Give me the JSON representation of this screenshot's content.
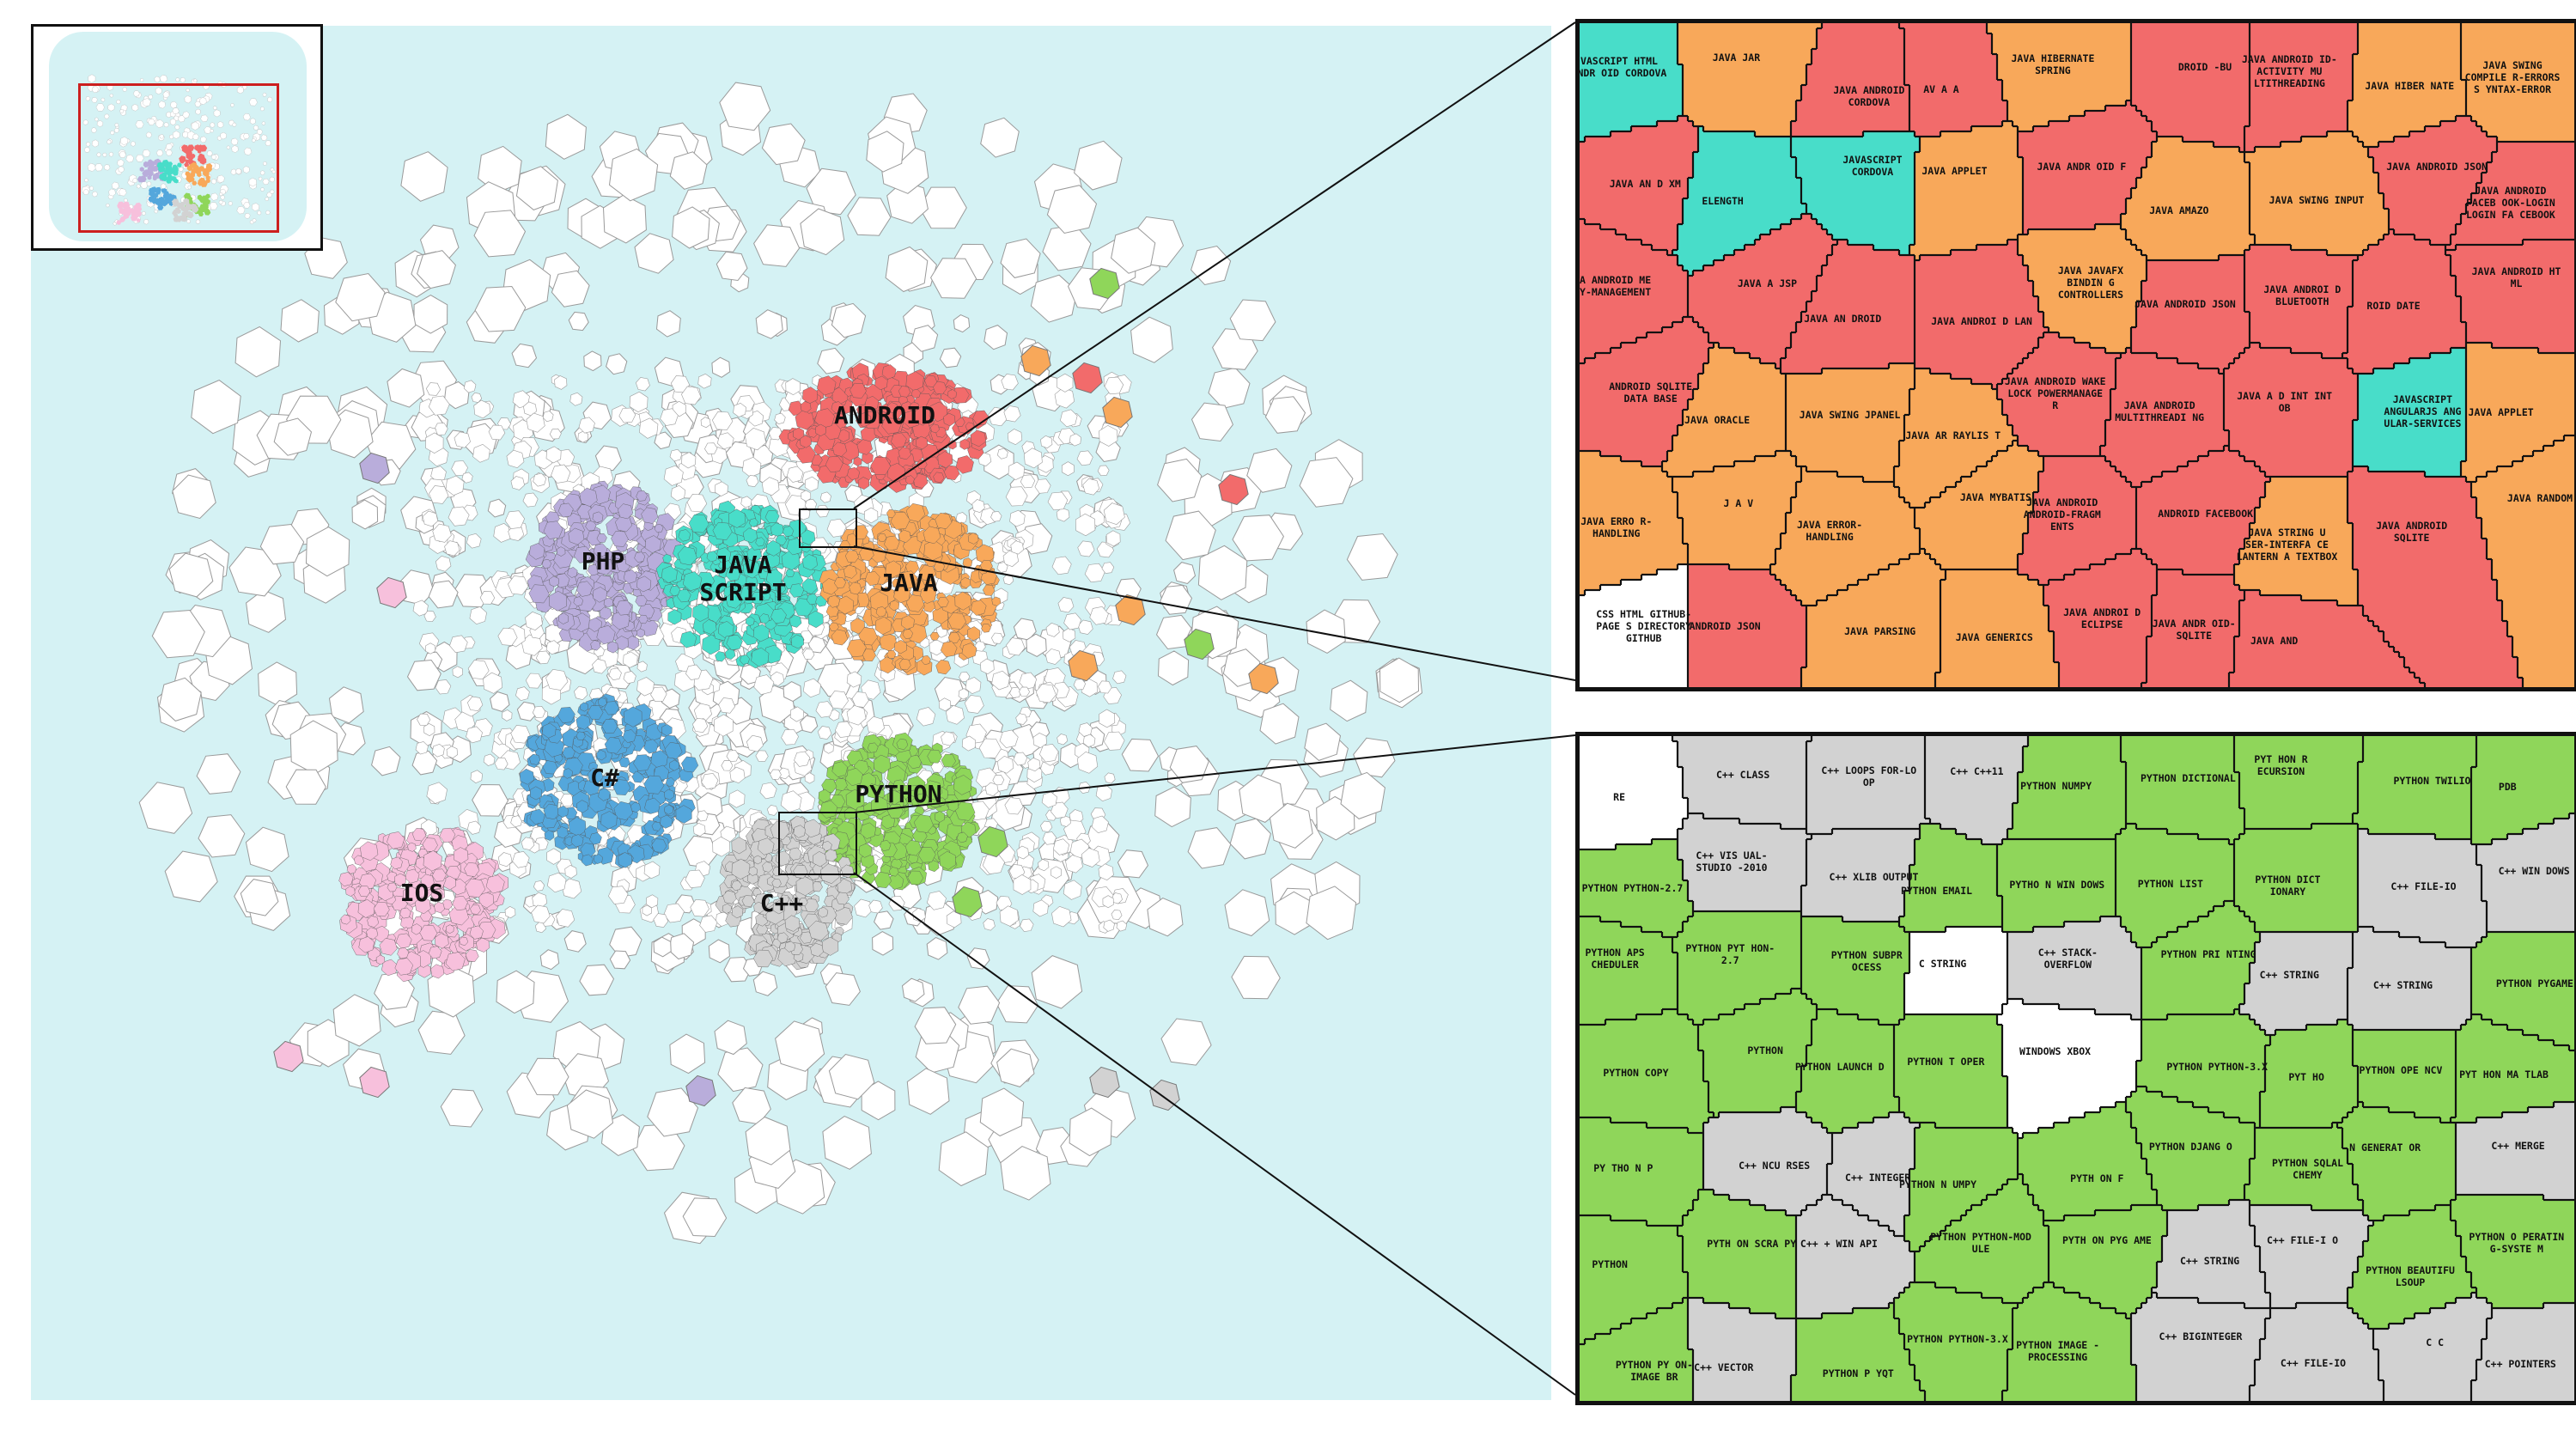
{
  "palette": {
    "ocean": "#d5f2f4",
    "tile": "#ffffff",
    "tile_border": "#9a9a9a",
    "android": "#f26b6b",
    "java": "#f8a85a",
    "javascript": "#48ddc9",
    "php": "#b9addb",
    "csharp": "#54a7dc",
    "python": "#8fd65a",
    "cpp": "#d2d2d2",
    "ios": "#f7c0dc",
    "viewport": "#cc1f1f"
  },
  "clusters": [
    {
      "id": "android",
      "label": "ANDROID",
      "color": "android"
    },
    {
      "id": "php",
      "label": "PHP",
      "color": "php"
    },
    {
      "id": "javascript",
      "label": "JAVA\nSCRIPT",
      "color": "javascript"
    },
    {
      "id": "java",
      "label": "JAVA",
      "color": "java"
    },
    {
      "id": "csharp",
      "label": "C#",
      "color": "csharp"
    },
    {
      "id": "python",
      "label": "PYTHON",
      "color": "python"
    },
    {
      "id": "ios",
      "label": "IOS",
      "color": "ios"
    },
    {
      "id": "cpp",
      "label": "C++",
      "color": "cpp"
    }
  ],
  "zoom_top": {
    "cells": [
      {
        "text": "VASCRIPT HTML ANDR OID CORDOVA",
        "color": "javascript"
      },
      {
        "text": "JAVA JAR",
        "color": "java"
      },
      {
        "text": "JAVA ANDROID CORDOVA",
        "color": "android"
      },
      {
        "text": "AV A A",
        "color": "android"
      },
      {
        "text": "JAVA HIBERNATE SPRING",
        "color": "java"
      },
      {
        "text": "DROID -BU",
        "color": "android"
      },
      {
        "text": "JAVA ANDROID ID-ACTIVITY MU LTITHREADING",
        "color": "android"
      },
      {
        "text": "JAVA HIBER NATE",
        "color": "java"
      },
      {
        "text": "JAVA SWING COMPILE R-ERRORS S YNTAX-ERROR",
        "color": "java"
      },
      {
        "text": "JAVA AN D XM",
        "color": "android"
      },
      {
        "text": "ELENGTH",
        "color": "javascript"
      },
      {
        "text": "JAVASCRIPT CORDOVA",
        "color": "javascript"
      },
      {
        "text": "JAVA APPLET",
        "color": "java"
      },
      {
        "text": "JAVA ANDR OID F",
        "color": "android"
      },
      {
        "text": "JAVA AMAZO",
        "color": "java"
      },
      {
        "text": "JAVA SWING INPUT",
        "color": "java"
      },
      {
        "text": "JAVA ANDROID JSON",
        "color": "android"
      },
      {
        "text": "JAVA ANDROID FACEB OOK-LOGIN LOGIN FA CEBOOK",
        "color": "android"
      },
      {
        "text": "JAVA ANDROID ME MORY-MANAGEMENT",
        "color": "android"
      },
      {
        "text": "JAVA A JSP",
        "color": "android"
      },
      {
        "text": "JAVA AN DROID",
        "color": "android"
      },
      {
        "text": "JAVA ANDROI D LAN",
        "color": "android"
      },
      {
        "text": "JAVA JAVAFX BINDIN G CONTROLLERS",
        "color": "java"
      },
      {
        "text": "JAVA ANDROID JSON",
        "color": "android"
      },
      {
        "text": "JAVA ANDROI D BLUETOOTH",
        "color": "android"
      },
      {
        "text": "ROID DATE",
        "color": "android"
      },
      {
        "text": "JAVA ANDROID HT ML",
        "color": "android"
      },
      {
        "text": "ANDROID SQLITE DATA BASE",
        "color": "android"
      },
      {
        "text": "JAVA ORACLE",
        "color": "java"
      },
      {
        "text": "JAVA SWING JPANEL",
        "color": "java"
      },
      {
        "text": "JAVA AR RAYLIS T",
        "color": "java"
      },
      {
        "text": "JAVA ANDROID WAKE LOCK POWERMANAGE R",
        "color": "android"
      },
      {
        "text": "JAVA ANDROID MULTITHREADI NG",
        "color": "android"
      },
      {
        "text": "JAVA A D INT INT OB",
        "color": "android"
      },
      {
        "text": "JAVASCRIPT ANGULARJS ANG ULAR-SERVICES",
        "color": "javascript"
      },
      {
        "text": "JAVA APPLET",
        "color": "java"
      },
      {
        "text": "JAVA ERRO R-HANDLING",
        "color": "java"
      },
      {
        "text": "J A V",
        "color": "java"
      },
      {
        "text": "JAVA ERROR- HANDLING",
        "color": "java"
      },
      {
        "text": "JAVA MYBATIS",
        "color": "java"
      },
      {
        "text": "JAVA ANDROID ANDROID-FRAGM ENTS",
        "color": "android"
      },
      {
        "text": "ANDROID FACEBOOK",
        "color": "android"
      },
      {
        "text": "JAVA STRING U SER-INTERFA CE LANTERN A TEXTBOX",
        "color": "java"
      },
      {
        "text": "JAVA ANDROID SQLITE",
        "color": "android"
      },
      {
        "text": "JAVA RANDOM",
        "color": "java"
      },
      {
        "text": "CSS HTML GITHUB-PAGE S DIRECTORY GITHUB",
        "color": "tile"
      },
      {
        "text": "ANDROID JSON",
        "color": "android"
      },
      {
        "text": "JAVA PARSING",
        "color": "java"
      },
      {
        "text": "JAVA GENERICS",
        "color": "java"
      },
      {
        "text": "JAVA ANDROI D ECLIPSE",
        "color": "android"
      },
      {
        "text": "JAVA ANDR OID-SQLITE",
        "color": "android"
      },
      {
        "text": "JAVA AND",
        "color": "android"
      }
    ]
  },
  "zoom_bottom": {
    "cells": [
      {
        "text": "RE",
        "color": "tile"
      },
      {
        "text": "C++ CLASS",
        "color": "cpp"
      },
      {
        "text": "C++ LOOPS FOR-LO OP",
        "color": "cpp"
      },
      {
        "text": "C++ C++11",
        "color": "cpp"
      },
      {
        "text": "PYTHON NUMPY",
        "color": "python"
      },
      {
        "text": "PYTHON DICTIONAL",
        "color": "python"
      },
      {
        "text": "PYT HON R ECURSION",
        "color": "python"
      },
      {
        "text": "PYTHON TWILIO",
        "color": "python"
      },
      {
        "text": "PDB",
        "color": "python"
      },
      {
        "text": "PYTHON PYTHON-2.7",
        "color": "python"
      },
      {
        "text": "C++ VIS UAL-STUDIO -2010",
        "color": "cpp"
      },
      {
        "text": "C++ XLIB OUTPUT",
        "color": "cpp"
      },
      {
        "text": "PYTHON EMAIL",
        "color": "python"
      },
      {
        "text": "PYTHO N WIN DOWS",
        "color": "python"
      },
      {
        "text": "PYTHON LIST",
        "color": "python"
      },
      {
        "text": "PYTHON DICT IONARY",
        "color": "python"
      },
      {
        "text": "C++ FILE-IO",
        "color": "cpp"
      },
      {
        "text": "C++ WIN DOWS",
        "color": "cpp"
      },
      {
        "text": "PYTHON APS CHEDULER",
        "color": "python"
      },
      {
        "text": "PYTHON PYT HON-2.7",
        "color": "python"
      },
      {
        "text": "PYTHON SUBPR OCESS",
        "color": "python"
      },
      {
        "text": "C STRING",
        "color": "tile"
      },
      {
        "text": "C++ STACK-OVERFLOW",
        "color": "cpp"
      },
      {
        "text": "PYTHON PRI NTING",
        "color": "python"
      },
      {
        "text": "C++ STRING",
        "color": "cpp"
      },
      {
        "text": "C++ STRING",
        "color": "cpp"
      },
      {
        "text": "PYTHON PYGAME",
        "color": "python"
      },
      {
        "text": "PYTHON COPY",
        "color": "python"
      },
      {
        "text": "PYTHON",
        "color": "python"
      },
      {
        "text": "PYTHON LAUNCH D",
        "color": "python"
      },
      {
        "text": "PYTHON T OPER",
        "color": "python"
      },
      {
        "text": "WINDOWS XBOX",
        "color": "tile"
      },
      {
        "text": "PYTHON PYTHON-3.X",
        "color": "python"
      },
      {
        "text": "PYT HO",
        "color": "python"
      },
      {
        "text": "PYTHON OPE NCV",
        "color": "python"
      },
      {
        "text": "PYT HON MA TLAB",
        "color": "python"
      },
      {
        "text": "PY THO N P",
        "color": "python"
      },
      {
        "text": "C++ NCU RSES",
        "color": "cpp"
      },
      {
        "text": "C++ INTEGER",
        "color": "cpp"
      },
      {
        "text": "PYTHON N UMPY",
        "color": "python"
      },
      {
        "text": "PYTH ON F",
        "color": "python"
      },
      {
        "text": "PYTHON DJANG O",
        "color": "python"
      },
      {
        "text": "PYTHON SQLAL CHEMY",
        "color": "python"
      },
      {
        "text": "N GENERAT OR",
        "color": "python"
      },
      {
        "text": "C++ MERGE",
        "color": "cpp"
      },
      {
        "text": "PYTHON",
        "color": "python"
      },
      {
        "text": "PYTH ON SCRA PY",
        "color": "python"
      },
      {
        "text": "C++ + WIN API",
        "color": "cpp"
      },
      {
        "text": "PYTHON PYTHON-MOD ULE",
        "color": "python"
      },
      {
        "text": "PYTH ON PYG AME",
        "color": "python"
      },
      {
        "text": "C++ STRING",
        "color": "cpp"
      },
      {
        "text": "C++ FILE-I O",
        "color": "cpp"
      },
      {
        "text": "PYTHON BEAUTIFU LSOUP",
        "color": "python"
      },
      {
        "text": "PYTHON O PERATIN G-SYSTE M",
        "color": "python"
      },
      {
        "text": "PYTHON PY ON-IMAGE BR",
        "color": "python"
      },
      {
        "text": "C++ VECTOR",
        "color": "cpp"
      },
      {
        "text": "PYTHON P YQT",
        "color": "python"
      },
      {
        "text": "PYTHON PYTHON-3.X",
        "color": "python"
      },
      {
        "text": "PYTHON IMAGE -PROCESSING",
        "color": "python"
      },
      {
        "text": "C++ BIGINTEGER",
        "color": "cpp"
      },
      {
        "text": "C++ FILE-IO",
        "color": "cpp"
      },
      {
        "text": "C C",
        "color": "cpp"
      },
      {
        "text": "C++ POINTERS",
        "color": "cpp"
      }
    ]
  }
}
